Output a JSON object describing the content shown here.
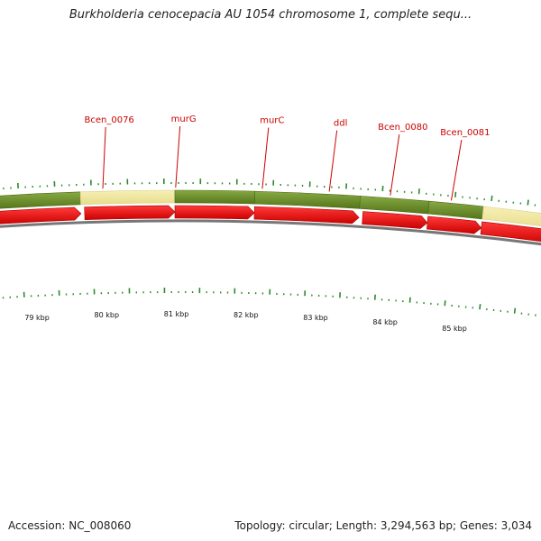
{
  "header": {
    "title": "Burkholderia cenocepacia AU 1054 chromosome 1, complete sequ..."
  },
  "footer": {
    "accession": "Accession: NC_008060",
    "summary": "Topology: circular; Length: 3,294,563 bp; Genes: 3,034"
  },
  "colors": {
    "gene_forward": "#6b8e23",
    "gene_other": "#f1e8a3",
    "cds": "#ee1111",
    "backbone": "#777777",
    "tick": "#2d8a2d",
    "label": "#cc0000"
  },
  "gene_labels": [
    {
      "text": "Bcen_0076",
      "kb": 79.96
    },
    {
      "text": "murG",
      "kb": 80.96
    },
    {
      "text": "murC",
      "kb": 82.15
    },
    {
      "text": "ddl",
      "kb": 83.07
    },
    {
      "text": "Bcen_0080",
      "kb": 83.91
    },
    {
      "text": "Bcen_0081",
      "kb": 84.75
    }
  ],
  "scale_labels": [
    "79 kbp",
    "80 kbp",
    "81 kbp",
    "82 kbp",
    "83 kbp",
    "84 kbp",
    "85 kbp"
  ],
  "gene_segments": [
    {
      "start": 78.4,
      "end": 79.65,
      "kind": "forward"
    },
    {
      "start": 79.65,
      "end": 80.95,
      "kind": "other"
    },
    {
      "start": 80.95,
      "end": 82.05,
      "kind": "forward"
    },
    {
      "start": 82.05,
      "end": 83.5,
      "kind": "forward"
    },
    {
      "start": 83.5,
      "end": 84.45,
      "kind": "forward"
    },
    {
      "start": 84.45,
      "end": 85.2,
      "kind": "forward"
    },
    {
      "start": 85.2,
      "end": 86.5,
      "kind": "other"
    }
  ],
  "cds_segments": [
    {
      "start": 78.4,
      "end": 79.65
    },
    {
      "start": 79.7,
      "end": 80.95
    },
    {
      "start": 80.95,
      "end": 82.05
    },
    {
      "start": 82.05,
      "end": 83.5
    },
    {
      "start": 83.55,
      "end": 84.45
    },
    {
      "start": 84.45,
      "end": 85.2
    },
    {
      "start": 85.2,
      "end": 86.5
    }
  ]
}
